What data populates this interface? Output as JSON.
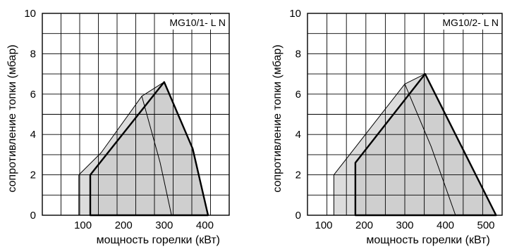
{
  "chart_data": [
    {
      "type": "area",
      "model_label": "MG10/1- L N",
      "xlabel": "мощность горелки (кВт)",
      "ylabel": "сопротивление топки (мбар)",
      "xlim": [
        0,
        460
      ],
      "ylim": [
        0,
        10
      ],
      "x_ticks": [
        100,
        200,
        300,
        400
      ],
      "y_ticks": [
        0,
        2,
        4,
        6,
        8,
        10
      ],
      "x_gridlines": [
        46,
        92,
        138,
        184,
        230,
        276,
        322,
        368,
        414
      ],
      "y_gridlines": [
        1,
        2,
        3,
        4,
        5,
        6,
        7,
        8,
        9
      ],
      "grid": true,
      "series": [
        {
          "role": "outer",
          "points": [
            [
              90,
              0
            ],
            [
              90,
              2
            ],
            [
              145,
              3.1
            ],
            [
              245,
              5.9
            ],
            [
              300,
              6.6
            ],
            [
              300,
              0
            ]
          ]
        },
        {
          "role": "inner",
          "points": [
            [
              118,
              0
            ],
            [
              118,
              2
            ],
            [
              300,
              6.6
            ],
            [
              370,
              3.3
            ],
            [
              408,
              0
            ]
          ]
        },
        {
          "role": "divider",
          "points": [
            [
              245,
              5.9
            ],
            [
              290,
              2.6
            ],
            [
              318,
              0
            ]
          ]
        }
      ]
    },
    {
      "type": "area",
      "model_label": "MG10/2- L N",
      "xlabel": "мощность горелки (кВт)",
      "ylabel": "сопротивление топки (мбар)",
      "xlim": [
        60,
        540
      ],
      "ylim": [
        0,
        10
      ],
      "x_ticks": [
        100,
        200,
        300,
        400,
        500
      ],
      "y_ticks": [
        0,
        2,
        4,
        6,
        8,
        10
      ],
      "x_gridlines": [
        108,
        156,
        204,
        252,
        300,
        348,
        396,
        444,
        492
      ],
      "y_gridlines": [
        1,
        2,
        3,
        4,
        5,
        6,
        7,
        8,
        9
      ],
      "grid": true,
      "series": [
        {
          "role": "outer",
          "points": [
            [
              125,
              0
            ],
            [
              125,
              2
            ],
            [
              300,
              6.5
            ],
            [
              350,
              7.0
            ],
            [
              350,
              0
            ]
          ]
        },
        {
          "role": "inner",
          "points": [
            [
              178,
              0
            ],
            [
              178,
              2.6
            ],
            [
              350,
              7.0
            ],
            [
              525,
              0
            ]
          ]
        },
        {
          "role": "divider",
          "points": [
            [
              300,
              6.5
            ],
            [
              365,
              3.4
            ],
            [
              425,
              0
            ]
          ]
        }
      ]
    }
  ]
}
